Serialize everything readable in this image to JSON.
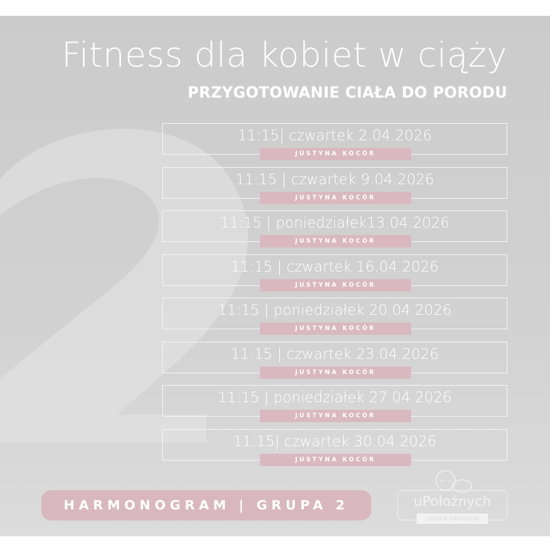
{
  "header": {
    "title": "Fitness dla kobiet w ciąży",
    "subtitle": "PRZYGOTOWANIE CIAŁA DO PORODU",
    "watermark": "2"
  },
  "sessions": [
    {
      "when": "11:15| czwartek 2.04.2026",
      "instructor": "JUSTYNA KOCÓR"
    },
    {
      "when": "11:15 | czwartek 9.04.2026",
      "instructor": "JUSTYNA KOCÓR"
    },
    {
      "when": "11:15 | poniedziałek13.04.2026",
      "instructor": "JUSTYNA KOCÓR"
    },
    {
      "when": "11:15 | czwartek 16.04.2026",
      "instructor": "JUSTYNA KOCÓR"
    },
    {
      "when": "11:15 | poniedziałek 20.04.2026",
      "instructor": "JUSTYNA KOCÓR"
    },
    {
      "when": "11:15 | czwartek 23.04.2026",
      "instructor": "JUSTYNA KOCÓR"
    },
    {
      "when": "11:15 | poniedziałek 27.04.2026",
      "instructor": "JUSTYNA KOCÓR"
    },
    {
      "when": "11:15| czwartek 30.04.2026",
      "instructor": "JUSTYNA KOCÓR"
    }
  ],
  "footer": {
    "schedule_label": "HARMONOGRAM | GRUPA 2"
  },
  "logo": {
    "name": "uPołożnych",
    "tagline": "SZKOŁA NARODZIN",
    "icon": "sleeping-baby-icon"
  },
  "colors": {
    "background": "#cecece",
    "accent": "#d9b9bf",
    "text": "#ffffff"
  }
}
